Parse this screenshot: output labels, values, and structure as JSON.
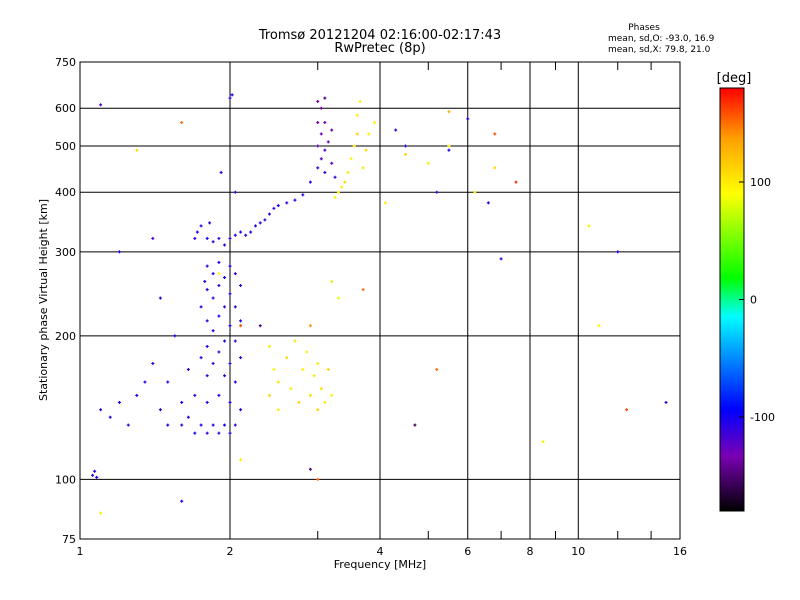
{
  "chart_data": {
    "type": "scatter",
    "title": "Tromsø 20121204 02:16:00-02:17:43",
    "subtitle": "RwPretec (8p)",
    "xlabel": "Frequency [MHz]",
    "ylabel": "Stationary phase Virtual Height [km]",
    "xscale": "log",
    "yscale": "log",
    "xlim": [
      1,
      16
    ],
    "ylim": [
      75,
      750
    ],
    "x_ticks": [
      1,
      2,
      4,
      6,
      8,
      10,
      16
    ],
    "x_minor_ticks": [
      3,
      5,
      7,
      9,
      12,
      14
    ],
    "y_ticks": [
      75,
      100,
      200,
      300,
      400,
      500,
      600,
      750
    ],
    "grid": true,
    "stats": {
      "heading": "Phases",
      "line_o": "mean, sd,O: -93.0, 16.9",
      "line_x": "mean, sd,X:  79.8, 21.0"
    },
    "colorbar": {
      "label": "[deg]",
      "range": [
        -180,
        180
      ],
      "ticks": [
        100,
        0,
        -100
      ],
      "colors": [
        "#000000",
        "#7a00b4",
        "#0000ff",
        "#00a0ff",
        "#00ffff",
        "#00ff00",
        "#ffff00",
        "#ffa000",
        "#ff0000"
      ]
    },
    "series": [
      {
        "description_type": "O-mode traces (blue/purple)",
        "points": [
          [
            1.06,
            102,
            -110
          ],
          [
            1.07,
            104,
            -100
          ],
          [
            1.08,
            101,
            -105
          ],
          [
            1.1,
            140,
            -110
          ],
          [
            1.1,
            610,
            -120
          ],
          [
            1.15,
            135,
            -105
          ],
          [
            1.2,
            145,
            -100
          ],
          [
            1.25,
            130,
            -110
          ],
          [
            1.3,
            150,
            -100
          ],
          [
            1.35,
            160,
            -100
          ],
          [
            1.4,
            175,
            -110
          ],
          [
            1.4,
            320,
            -120
          ],
          [
            1.45,
            140,
            -100
          ],
          [
            1.5,
            130,
            -100
          ],
          [
            1.5,
            160,
            -110
          ],
          [
            1.55,
            200,
            -100
          ],
          [
            1.6,
            130,
            -110
          ],
          [
            1.6,
            145,
            -100
          ],
          [
            1.65,
            135,
            -105
          ],
          [
            1.65,
            170,
            -110
          ],
          [
            1.7,
            125,
            -100
          ],
          [
            1.7,
            150,
            -110
          ],
          [
            1.7,
            320,
            -110
          ],
          [
            1.72,
            330,
            -100
          ],
          [
            1.75,
            340,
            -110
          ],
          [
            1.75,
            130,
            -100
          ],
          [
            1.75,
            180,
            -110
          ],
          [
            1.75,
            230,
            -100
          ],
          [
            1.78,
            260,
            -110
          ],
          [
            1.8,
            125,
            -110
          ],
          [
            1.8,
            145,
            -100
          ],
          [
            1.8,
            165,
            -110
          ],
          [
            1.8,
            190,
            -100
          ],
          [
            1.8,
            215,
            -110
          ],
          [
            1.8,
            250,
            -100
          ],
          [
            1.8,
            280,
            -110
          ],
          [
            1.8,
            320,
            -100
          ],
          [
            1.82,
            345,
            -110
          ],
          [
            1.85,
            130,
            -100
          ],
          [
            1.85,
            175,
            -110
          ],
          [
            1.85,
            205,
            -100
          ],
          [
            1.85,
            240,
            -110
          ],
          [
            1.85,
            270,
            -100
          ],
          [
            1.85,
            315,
            -110
          ],
          [
            1.9,
            125,
            -110
          ],
          [
            1.9,
            150,
            -100
          ],
          [
            1.9,
            185,
            -110
          ],
          [
            1.9,
            220,
            -100
          ],
          [
            1.9,
            255,
            -110
          ],
          [
            1.9,
            285,
            -100
          ],
          [
            1.9,
            320,
            -110
          ],
          [
            1.92,
            440,
            -110
          ],
          [
            1.95,
            130,
            -100
          ],
          [
            1.95,
            165,
            -110
          ],
          [
            1.95,
            195,
            -100
          ],
          [
            1.95,
            230,
            -110
          ],
          [
            1.95,
            265,
            -100
          ],
          [
            1.95,
            310,
            -110
          ],
          [
            2.0,
            125,
            -110
          ],
          [
            2.0,
            145,
            -100
          ],
          [
            2.0,
            175,
            -110
          ],
          [
            2.0,
            210,
            -100
          ],
          [
            2.0,
            245,
            -110
          ],
          [
            2.0,
            280,
            -100
          ],
          [
            2.0,
            320,
            -110
          ],
          [
            2.0,
            630,
            -110
          ],
          [
            2.02,
            640,
            -100
          ],
          [
            2.05,
            130,
            -110
          ],
          [
            2.05,
            160,
            -100
          ],
          [
            2.05,
            195,
            -110
          ],
          [
            2.05,
            230,
            -100
          ],
          [
            2.05,
            270,
            -110
          ],
          [
            2.05,
            325,
            -100
          ],
          [
            2.05,
            400,
            -110
          ],
          [
            2.1,
            140,
            -100
          ],
          [
            2.1,
            180,
            -110
          ],
          [
            2.1,
            215,
            -100
          ],
          [
            2.1,
            255,
            -110
          ],
          [
            2.1,
            330,
            -100
          ],
          [
            2.15,
            325,
            -110
          ],
          [
            2.2,
            330,
            -100
          ],
          [
            2.25,
            340,
            -110
          ],
          [
            2.3,
            345,
            -100
          ],
          [
            2.35,
            350,
            -110
          ],
          [
            2.4,
            360,
            -100
          ],
          [
            2.45,
            370,
            -110
          ],
          [
            2.5,
            375,
            -100
          ],
          [
            2.6,
            380,
            -110
          ],
          [
            2.7,
            385,
            -100
          ],
          [
            2.8,
            395,
            -110
          ],
          [
            2.9,
            420,
            -100
          ],
          [
            3.0,
            450,
            -110
          ],
          [
            3.0,
            500,
            -120
          ],
          [
            3.0,
            560,
            -130
          ],
          [
            3.0,
            620,
            -140
          ],
          [
            3.05,
            470,
            -120
          ],
          [
            3.05,
            530,
            -130
          ],
          [
            3.05,
            600,
            -140
          ],
          [
            3.1,
            440,
            -110
          ],
          [
            3.1,
            490,
            -120
          ],
          [
            3.1,
            560,
            -130
          ],
          [
            3.1,
            630,
            -150
          ],
          [
            3.15,
            510,
            -130
          ],
          [
            3.2,
            460,
            -120
          ],
          [
            3.2,
            540,
            -140
          ],
          [
            3.25,
            430,
            -110
          ],
          [
            1.6,
            90,
            -100
          ],
          [
            1.45,
            240,
            -110
          ],
          [
            1.2,
            300,
            -100
          ],
          [
            4.3,
            540,
            -110
          ],
          [
            4.5,
            500,
            -100
          ],
          [
            5.2,
            400,
            -110
          ],
          [
            5.5,
            490,
            -100
          ],
          [
            6.0,
            570,
            -110
          ],
          [
            6.6,
            380,
            -100
          ],
          [
            7.0,
            290,
            -110
          ],
          [
            12.0,
            300,
            -100
          ],
          [
            15.0,
            145,
            -110
          ]
        ]
      },
      {
        "description_type": "X-mode traces (yellow/green)",
        "points": [
          [
            2.4,
            190,
            100
          ],
          [
            2.4,
            150,
            110
          ],
          [
            2.45,
            170,
            95
          ],
          [
            2.5,
            160,
            105
          ],
          [
            2.5,
            140,
            100
          ],
          [
            2.6,
            180,
            110
          ],
          [
            2.65,
            155,
            100
          ],
          [
            2.7,
            195,
            105
          ],
          [
            2.75,
            145,
            110
          ],
          [
            2.8,
            170,
            100
          ],
          [
            2.85,
            185,
            95
          ],
          [
            2.9,
            150,
            105
          ],
          [
            2.95,
            165,
            100
          ],
          [
            3.0,
            140,
            110
          ],
          [
            3.0,
            175,
            100
          ],
          [
            3.05,
            155,
            105
          ],
          [
            3.1,
            145,
            100
          ],
          [
            3.15,
            170,
            110
          ],
          [
            3.2,
            150,
            95
          ],
          [
            3.2,
            260,
            80
          ],
          [
            3.3,
            240,
            85
          ],
          [
            3.25,
            390,
            100
          ],
          [
            3.3,
            400,
            95
          ],
          [
            3.35,
            410,
            100
          ],
          [
            3.4,
            420,
            110
          ],
          [
            3.45,
            440,
            100
          ],
          [
            3.5,
            470,
            95
          ],
          [
            3.55,
            500,
            100
          ],
          [
            3.6,
            530,
            110
          ],
          [
            3.6,
            580,
            100
          ],
          [
            3.65,
            620,
            95
          ],
          [
            3.7,
            450,
            100
          ],
          [
            3.75,
            490,
            110
          ],
          [
            3.8,
            530,
            100
          ],
          [
            3.9,
            560,
            95
          ],
          [
            4.1,
            380,
            100
          ],
          [
            4.5,
            480,
            110
          ],
          [
            5.0,
            460,
            100
          ],
          [
            5.5,
            500,
            95
          ],
          [
            6.2,
            400,
            100
          ],
          [
            6.8,
            450,
            110
          ],
          [
            10.5,
            340,
            100
          ],
          [
            11.0,
            210,
            95
          ],
          [
            2.1,
            110,
            100
          ],
          [
            1.9,
            270,
            90
          ],
          [
            1.3,
            490,
            110
          ],
          [
            1.1,
            85,
            100
          ],
          [
            8.5,
            120,
            100
          ]
        ]
      },
      {
        "description_type": "Scattered other phases",
        "points": [
          [
            1.6,
            560,
            150
          ],
          [
            2.1,
            210,
            160
          ],
          [
            2.3,
            210,
            -150
          ],
          [
            2.9,
            210,
            140
          ],
          [
            3.7,
            250,
            150
          ],
          [
            4.7,
            130,
            -160
          ],
          [
            5.2,
            170,
            150
          ],
          [
            5.5,
            590,
            130
          ],
          [
            6.8,
            530,
            160
          ],
          [
            7.5,
            420,
            170
          ],
          [
            3.0,
            100,
            150
          ],
          [
            12.5,
            140,
            160
          ],
          [
            2.9,
            105,
            -150
          ]
        ]
      }
    ]
  }
}
